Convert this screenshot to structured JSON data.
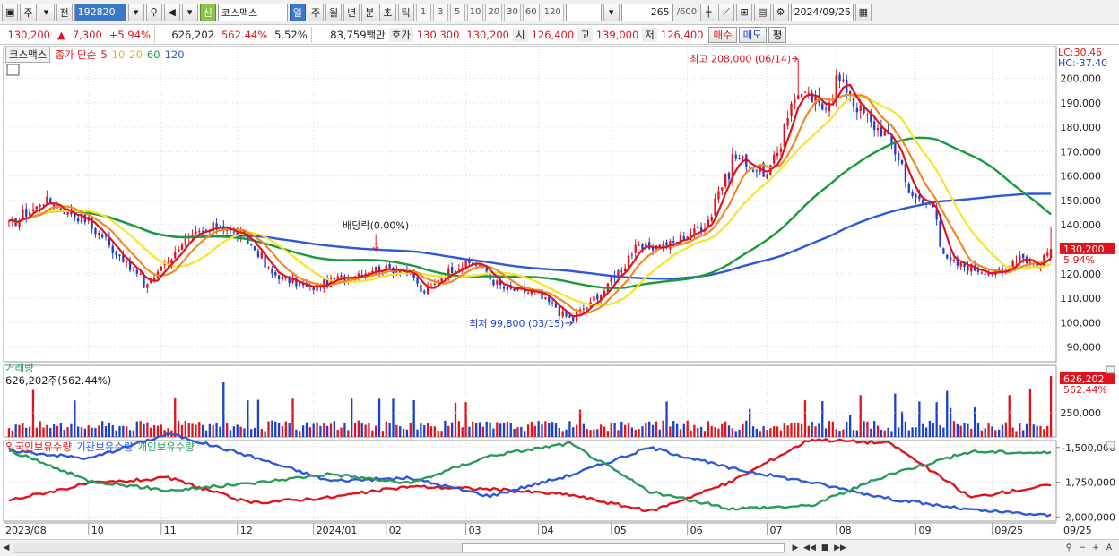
{
  "toolbar": {
    "period_type": "주",
    "prev": "전",
    "code": "192820",
    "name": "코스맥스",
    "credit_badge": "신",
    "periods": [
      "일",
      "주",
      "월",
      "년",
      "분",
      "초",
      "틱"
    ],
    "intervals": [
      "1",
      "3",
      "5",
      "10",
      "20",
      "30",
      "60",
      "120"
    ],
    "count": "265",
    "count_max": "/600",
    "date": "2024/09/25"
  },
  "quote": {
    "price": "130,200",
    "change_arrow": "▲",
    "change": "7,300",
    "change_pct": "+5.94%",
    "volume": "626,202",
    "volume_pct": "562.44%",
    "turnover_pct": "5.52%",
    "amount": "83,759백만",
    "bid_label": "호가",
    "ask1": "130,300",
    "bid1": "130,200",
    "open_label": "시",
    "open": "126,400",
    "high_label": "고",
    "high": "139,000",
    "low_label": "저",
    "low": "126,400",
    "buy": "매수",
    "sell": "매도",
    "eval": "평"
  },
  "legend": {
    "name": "코스맥스",
    "series_label": "종가 단순",
    "ma": [
      "5",
      "10",
      "20",
      "60",
      "120"
    ]
  },
  "annotations": {
    "high_text": "최고 208,000 (06/14)",
    "low_text": "최저 99,800 (03/15)",
    "dividend_text": "배당락(0.00%)",
    "lc": "LC:30.46",
    "hc": "HC:-37.40",
    "last_price": "130,200",
    "last_pct": "5.94%",
    "last_volume": "626,202",
    "last_volume_pct": "562.44%"
  },
  "volume_panel": {
    "title": "거래량",
    "summary": "626,202주(562.44%)"
  },
  "holding_panel": {
    "series": [
      "외국인보유수량",
      "기관보유수량",
      "개인보유수량"
    ]
  },
  "colors": {
    "up": "#e0141e",
    "down": "#1c3fd0",
    "ma5": "#e0141e",
    "ma10": "#f08a24",
    "ma20": "#f7e427",
    "ma60": "#1a9a3a",
    "ma120": "#2f58d8",
    "foreign": "#e0141e",
    "institution": "#2f58d8",
    "individual": "#2a9a5c",
    "volume_up": "#e0141e",
    "volume_down": "#1c3fd0"
  },
  "chart_data": [
    {
      "type": "candlestick",
      "title": "",
      "x_ticks": [
        "2023/08",
        "10",
        "11",
        "12",
        "2024/01",
        "02",
        "03",
        "04",
        "05",
        "06",
        "07",
        "08",
        "09",
        "09/25"
      ],
      "y_ticks": [
        90000,
        100000,
        110000,
        120000,
        130000,
        140000,
        150000,
        160000,
        170000,
        180000,
        190000,
        200000
      ],
      "ylim": [
        84000,
        213000
      ],
      "close_anchors": [
        {
          "date": "2023-08-01",
          "close": 140000
        },
        {
          "date": "2023-08-15",
          "close": 150000
        },
        {
          "date": "2023-09-01",
          "close": 142000
        },
        {
          "date": "2023-09-12",
          "close": 130000
        },
        {
          "date": "2023-09-25",
          "close": 115000
        },
        {
          "date": "2023-10-10",
          "close": 133000
        },
        {
          "date": "2023-10-25",
          "close": 140000
        },
        {
          "date": "2023-11-06",
          "close": 133000
        },
        {
          "date": "2023-11-15",
          "close": 120000
        },
        {
          "date": "2023-11-30",
          "close": 114000
        },
        {
          "date": "2023-12-12",
          "close": 118000
        },
        {
          "date": "2023-12-26",
          "close": 122000
        },
        {
          "date": "2024-01-08",
          "close": 122000
        },
        {
          "date": "2024-01-15",
          "close": 112000
        },
        {
          "date": "2024-01-26",
          "close": 122000
        },
        {
          "date": "2024-02-05",
          "close": 125000
        },
        {
          "date": "2024-02-16",
          "close": 114000
        },
        {
          "date": "2024-03-01",
          "close": 112000
        },
        {
          "date": "2024-03-15",
          "close": 101000
        },
        {
          "date": "2024-03-27",
          "close": 112000
        },
        {
          "date": "2024-04-10",
          "close": 130000
        },
        {
          "date": "2024-04-24",
          "close": 132000
        },
        {
          "date": "2024-05-08",
          "close": 140000
        },
        {
          "date": "2024-05-20",
          "close": 168000
        },
        {
          "date": "2024-06-03",
          "close": 160000
        },
        {
          "date": "2024-06-14",
          "close": 195000
        },
        {
          "date": "2024-06-25",
          "close": 188000
        },
        {
          "date": "2024-07-01",
          "close": 200000
        },
        {
          "date": "2024-07-12",
          "close": 184000
        },
        {
          "date": "2024-07-22",
          "close": 175000
        },
        {
          "date": "2024-08-01",
          "close": 150000
        },
        {
          "date": "2024-08-08",
          "close": 148000
        },
        {
          "date": "2024-08-14",
          "close": 125000
        },
        {
          "date": "2024-08-26",
          "close": 122000
        },
        {
          "date": "2024-09-05",
          "close": 120000
        },
        {
          "date": "2024-09-12",
          "close": 128000
        },
        {
          "date": "2024-09-20",
          "close": 122900
        },
        {
          "date": "2024-09-25",
          "close": 130200
        }
      ],
      "high_point": {
        "date": "2024-06-14",
        "price": 208000
      },
      "low_point": {
        "date": "2024-03-15",
        "price": 99800
      },
      "moving_averages": [
        "MA5",
        "MA10",
        "MA20",
        "MA60",
        "MA120"
      ]
    },
    {
      "type": "bar",
      "title": "거래량",
      "y_ticks": [
        250000
      ],
      "last_value": 626202
    },
    {
      "type": "line",
      "series": [
        {
          "name": "외국인보유수량",
          "values": [
            -1880000,
            -1760000,
            -1720000,
            -1900000,
            -1860000,
            -1780000,
            -1800000,
            -1840000,
            -1960000,
            -1750000,
            -1440000,
            -1470000,
            -1860000,
            -1770000
          ]
        },
        {
          "name": "기관보유수량",
          "values": [
            -1520000,
            -1580000,
            -1400000,
            -1560000,
            -1740000,
            -1720000,
            -1850000,
            -1700000,
            -1500000,
            -1650000,
            -1750000,
            -1870000,
            -1950000,
            -1990000
          ]
        },
        {
          "name": "개인보유수량",
          "values": [
            -1520000,
            -1740000,
            -1810000,
            -1760000,
            -1690000,
            -1760000,
            -1560000,
            -1470000,
            -1820000,
            -1940000,
            -1920000,
            -1690000,
            -1530000,
            -1540000
          ]
        }
      ],
      "y_ticks": [
        -1500000,
        -1750000,
        -2000000
      ]
    }
  ]
}
